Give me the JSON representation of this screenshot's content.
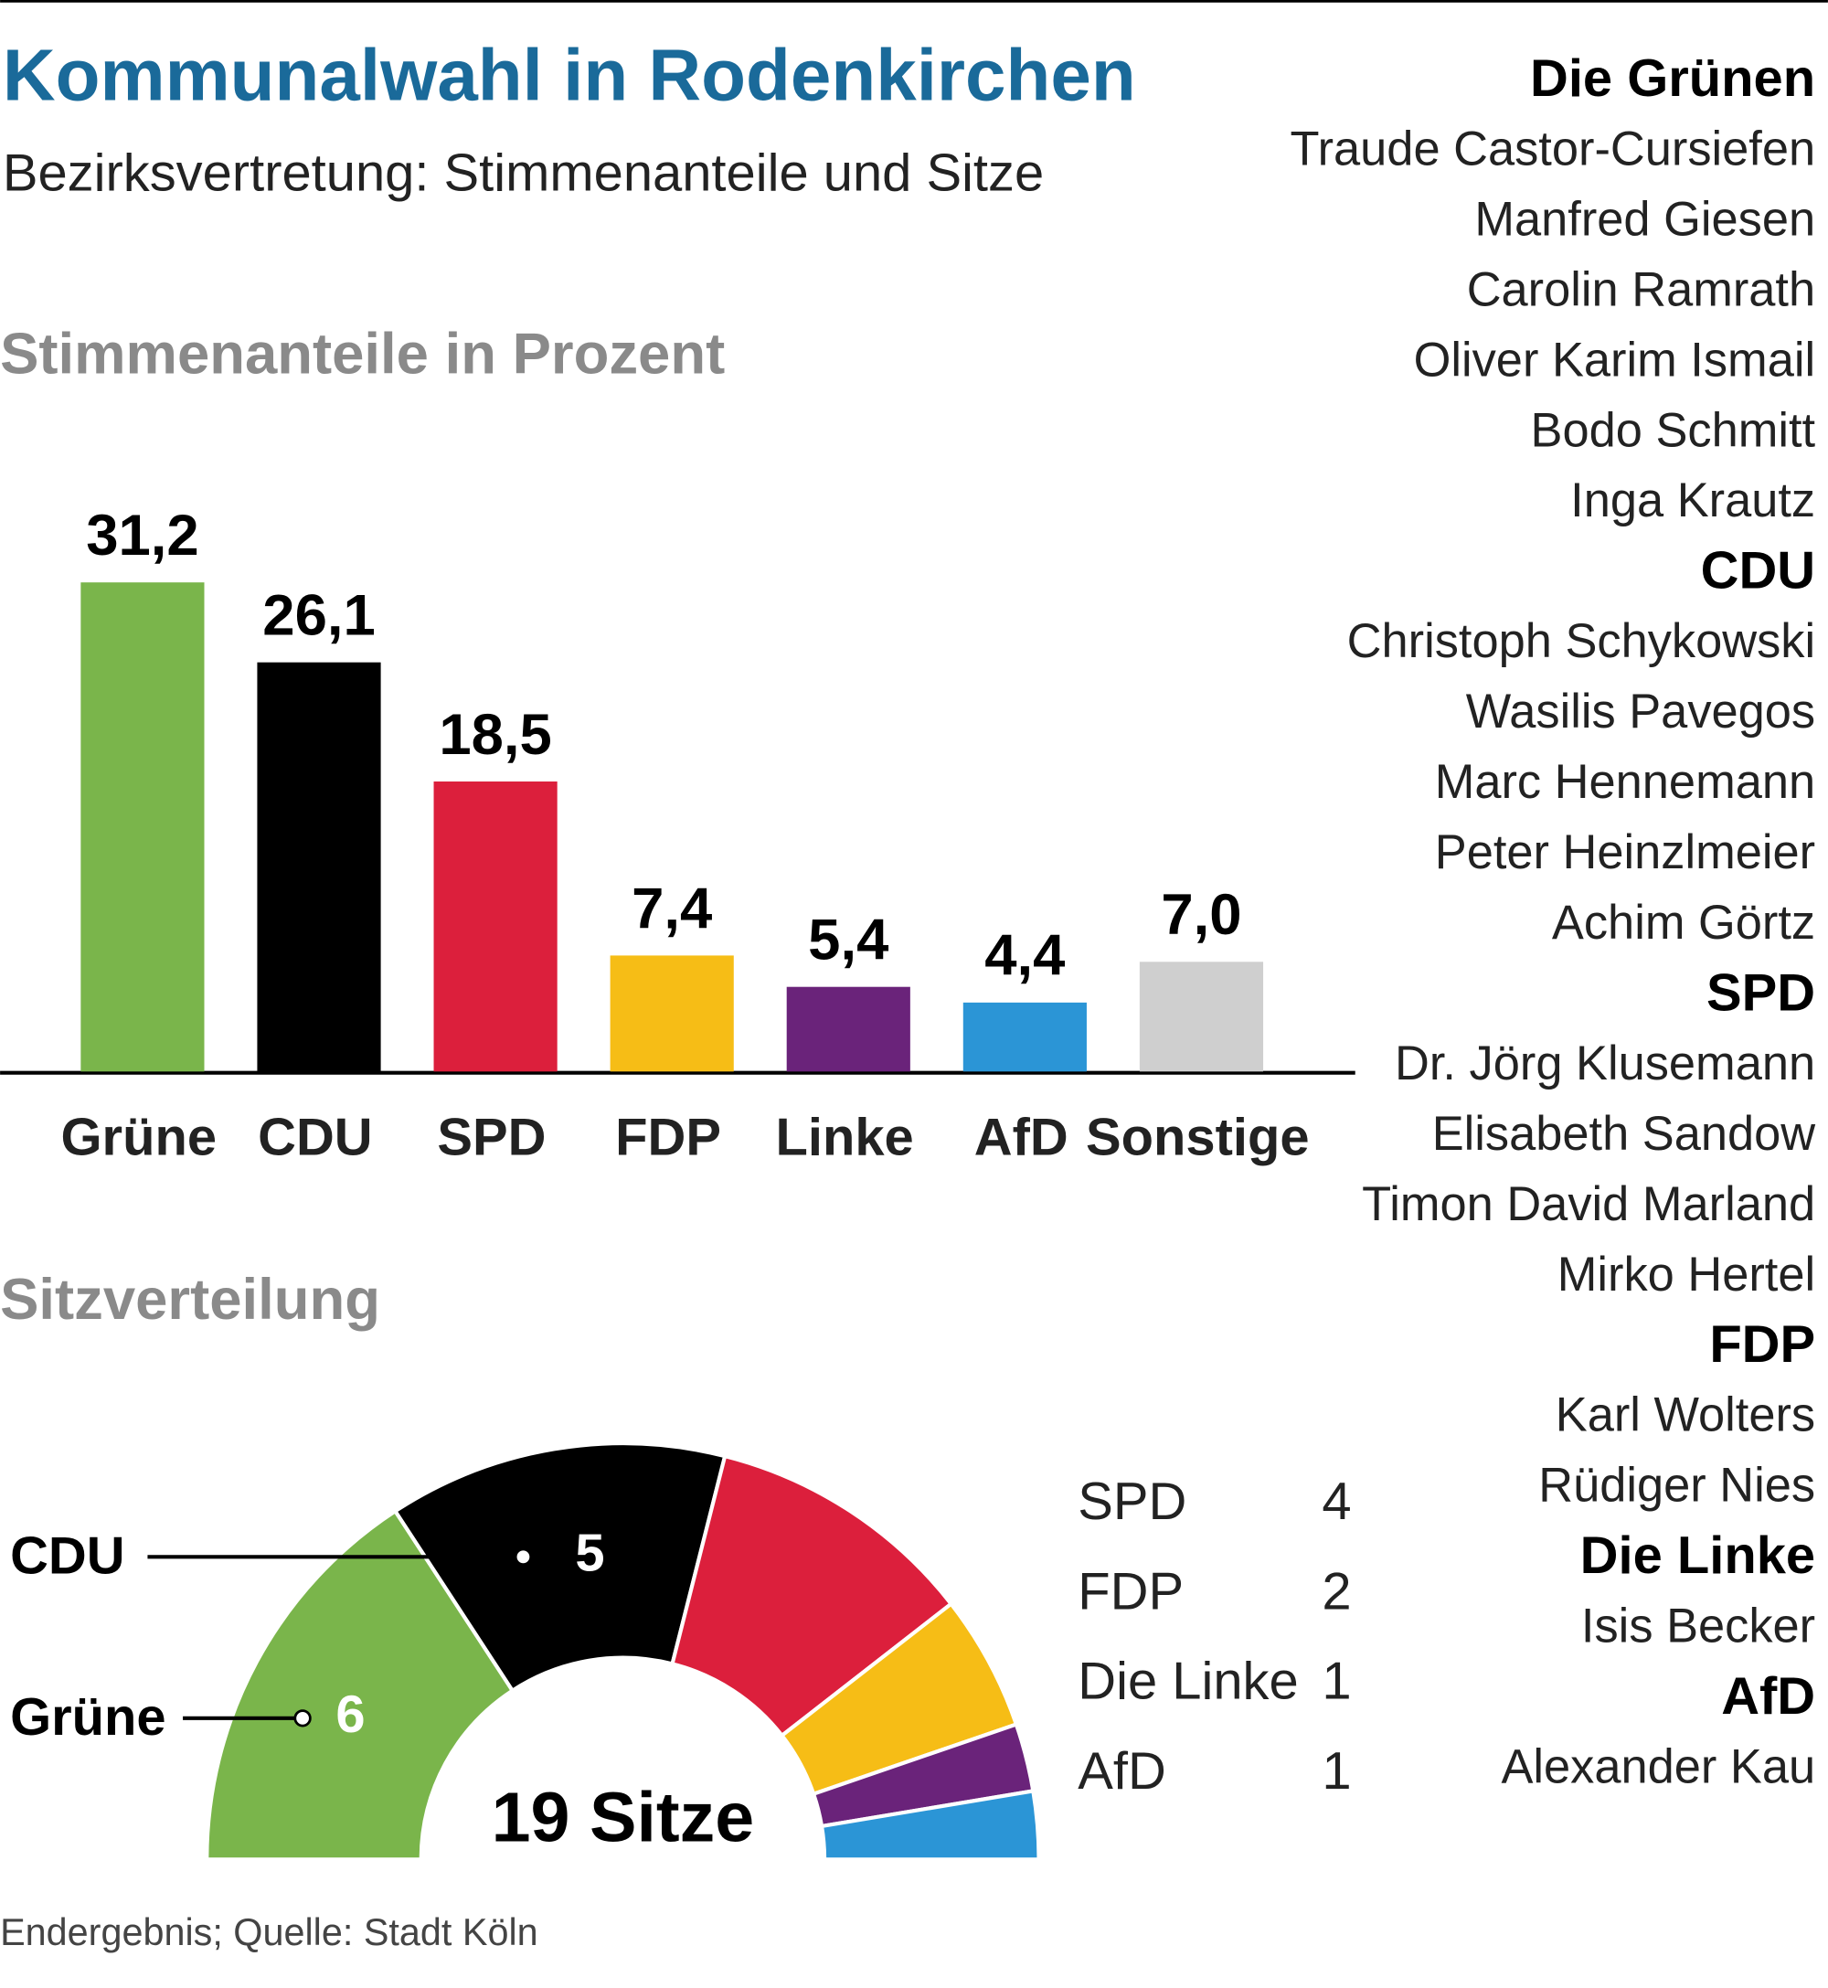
{
  "title": "Kommunalwahl in Rodenkirchen",
  "subtitle": "Bezirksvertretung: Stimmenanteile und Sitze",
  "source": "Endergebnis; Quelle: Stadt Köln",
  "chart_data": [
    {
      "type": "bar",
      "title": "Stimmenanteile in Prozent",
      "categories": [
        "Grüne",
        "CDU",
        "SPD",
        "FDP",
        "Linke",
        "AfD",
        "Sonstige"
      ],
      "values": [
        31.2,
        26.1,
        18.5,
        7.4,
        5.4,
        4.4,
        7.0
      ],
      "value_labels": [
        "31,2",
        "26,1",
        "18,5",
        "7,4",
        "5,4",
        "4,4",
        "7,0"
      ],
      "colors": [
        "#7ab54b",
        "#000000",
        "#dc1f3c",
        "#f6bd16",
        "#6a237a",
        "#2b95d6",
        "#cfcfcf"
      ]
    },
    {
      "type": "semicircle",
      "title": "Sitzverteilung",
      "center_label": "19 Sitze",
      "categories": [
        "Grüne",
        "CDU",
        "SPD",
        "FDP",
        "Die Linke",
        "AfD"
      ],
      "values": [
        6,
        5,
        4,
        2,
        1,
        1
      ],
      "colors": [
        "#7ab54b",
        "#000000",
        "#dc1f3c",
        "#f6bd16",
        "#6a237a",
        "#2b95d6"
      ]
    }
  ],
  "members": [
    {
      "party": "Die Grünen",
      "names": [
        "Traude Castor-Cursiefen",
        "Manfred Giesen",
        "Carolin Ramrath",
        "Oliver Karim Ismail",
        "Bodo Schmitt",
        "Inga Krautz"
      ]
    },
    {
      "party": "CDU",
      "names": [
        "Christoph Schykowski",
        "Wasilis Pavegos",
        "Marc Hennemann",
        "Peter Heinzlmeier",
        "Achim Görtz"
      ]
    },
    {
      "party": "SPD",
      "names": [
        "Dr. Jörg Klusemann",
        "Elisabeth Sandow",
        "Timon David Marland",
        "Mirko Hertel"
      ]
    },
    {
      "party": "FDP",
      "names": [
        "Karl Wolters",
        "Rüdiger Nies"
      ]
    },
    {
      "party": "Die Linke",
      "names": [
        "Isis Becker"
      ]
    },
    {
      "party": "AfD",
      "names": [
        "Alexander Kau"
      ]
    }
  ]
}
